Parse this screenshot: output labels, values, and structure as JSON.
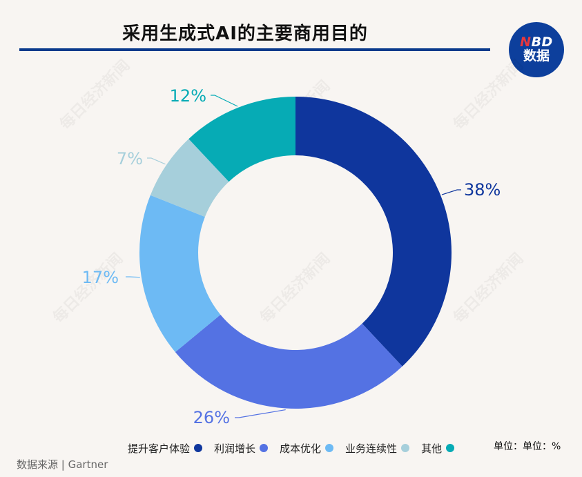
{
  "title": "采用生成式AI的主要商用目的",
  "logo": {
    "top_n": "N",
    "top_rest": "BD",
    "bottom": "数据"
  },
  "watermark_text": "每日经济新闻",
  "unit_label": "单位：单位：%",
  "source_label": "数据来源 | Gartner",
  "chart_data": {
    "type": "pie",
    "donut": true,
    "categories": [
      "提升客户体验",
      "利润增长",
      "成本优化",
      "业务连续性",
      "其他"
    ],
    "values": [
      38,
      26,
      17,
      7,
      12
    ],
    "labels": [
      "38%",
      "26%",
      "17%",
      "7%",
      "12%"
    ],
    "colors": [
      "#0f369d",
      "#5472e3",
      "#6dbaf4",
      "#a6cfdb",
      "#06abb5"
    ],
    "legend_position": "bottom-right"
  }
}
